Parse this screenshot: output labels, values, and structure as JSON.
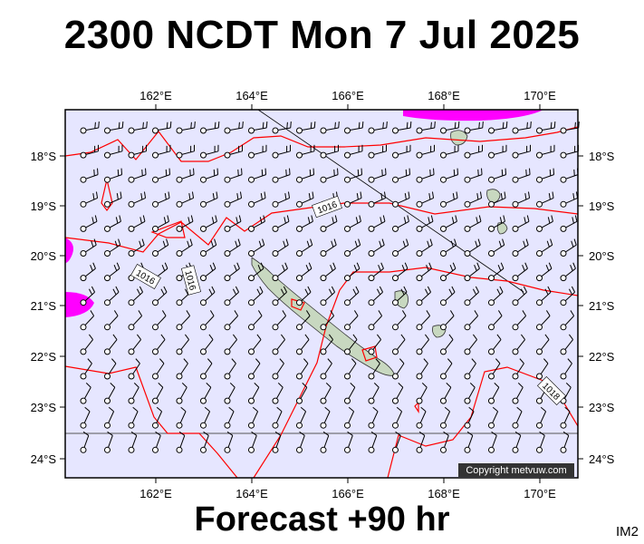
{
  "header": {
    "title": "2300 NCDT Mon 7 Jul 2025"
  },
  "footer": {
    "forecast": "Forecast +90 hr",
    "code": "IM2"
  },
  "map": {
    "lon_labels": [
      "162°E",
      "164°E",
      "166°E",
      "168°E",
      "170°E"
    ],
    "lat_labels": [
      "18°S",
      "19°S",
      "20°S",
      "21°S",
      "22°S",
      "23°S",
      "24°S"
    ],
    "isobar_labels": [
      "1016",
      "1016",
      "1016",
      "1018"
    ],
    "copyright": "Copyright metvuw.com",
    "colors": {
      "ocean": "#e6e6ff",
      "isobar": "#ff0000",
      "rain": "#ff00ff",
      "land": "#c8d8c0",
      "barb": "#000000"
    }
  }
}
